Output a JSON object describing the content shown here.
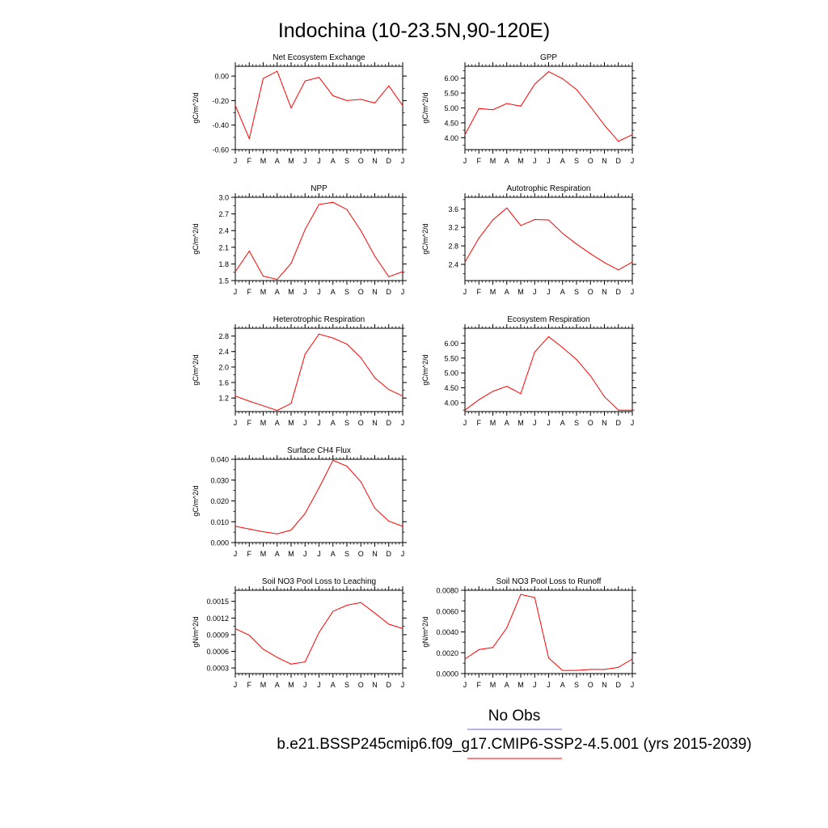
{
  "page": {
    "title": "Indochina (10-23.5N,90-120E)",
    "legend": {
      "obs_label": "No Obs",
      "obs_color": "#6666ff",
      "model_label": "b.e21.BSSP245cmip6.f09_g17.CMIP6-SSP2-4.5.001 (yrs 2015-2039)",
      "model_color": "#ff0000"
    }
  },
  "chart_data": [
    {
      "type": "line",
      "title": "Net Ecosystem Exchange",
      "ylabel": "gC/m^2/d",
      "x": [
        "J",
        "F",
        "M",
        "A",
        "M",
        "J",
        "J",
        "A",
        "S",
        "O",
        "N",
        "D",
        "J"
      ],
      "ylim": [
        -0.6,
        0.08
      ],
      "yticks": [
        -0.6,
        -0.4,
        -0.2,
        0.0
      ],
      "ytick_labels": [
        "-0.60",
        "-0.40",
        "-0.20",
        "0.00"
      ],
      "series": [
        {
          "values": [
            -0.24,
            -0.51,
            -0.02,
            0.04,
            -0.26,
            -0.04,
            -0.01,
            -0.16,
            -0.2,
            -0.19,
            -0.22,
            -0.08,
            -0.24
          ]
        }
      ]
    },
    {
      "type": "line",
      "title": "GPP",
      "ylabel": "gC/m^2/d",
      "x": [
        "J",
        "F",
        "M",
        "A",
        "M",
        "J",
        "J",
        "A",
        "S",
        "O",
        "N",
        "D",
        "J"
      ],
      "ylim": [
        3.6,
        6.4
      ],
      "yticks": [
        4.0,
        4.5,
        5.0,
        5.5,
        6.0
      ],
      "ytick_labels": [
        "4.00",
        "4.50",
        "5.00",
        "5.50",
        "6.00"
      ],
      "series": [
        {
          "values": [
            4.1,
            4.98,
            4.94,
            5.15,
            5.06,
            5.8,
            6.22,
            5.98,
            5.62,
            5.04,
            4.42,
            3.88,
            4.1
          ]
        }
      ]
    },
    {
      "type": "line",
      "title": "NPP",
      "ylabel": "gC/m^2/d",
      "x": [
        "J",
        "F",
        "M",
        "A",
        "M",
        "J",
        "J",
        "A",
        "S",
        "O",
        "N",
        "D",
        "J"
      ],
      "ylim": [
        1.5,
        3.0
      ],
      "yticks": [
        1.5,
        1.8,
        2.1,
        2.4,
        2.7,
        3.0
      ],
      "ytick_labels": [
        "1.5",
        "1.8",
        "2.1",
        "2.4",
        "2.7",
        "3.0"
      ],
      "series": [
        {
          "values": [
            1.66,
            2.03,
            1.58,
            1.52,
            1.81,
            2.42,
            2.87,
            2.91,
            2.78,
            2.4,
            1.94,
            1.57,
            1.66
          ]
        }
      ]
    },
    {
      "type": "line",
      "title": "Autotrophic Respiration",
      "ylabel": "gC/m^2/d",
      "x": [
        "J",
        "F",
        "M",
        "A",
        "M",
        "J",
        "J",
        "A",
        "S",
        "O",
        "N",
        "D",
        "J"
      ],
      "ylim": [
        2.05,
        3.85
      ],
      "yticks": [
        2.4,
        2.8,
        3.2,
        3.6
      ],
      "ytick_labels": [
        "2.4",
        "2.8",
        "3.2",
        "3.6"
      ],
      "series": [
        {
          "values": [
            2.45,
            2.97,
            3.36,
            3.62,
            3.24,
            3.37,
            3.36,
            3.07,
            2.84,
            2.63,
            2.44,
            2.28,
            2.45
          ]
        }
      ]
    },
    {
      "type": "line",
      "title": "Heterotrophic Respiration",
      "ylabel": "gC/m^2/d",
      "x": [
        "J",
        "F",
        "M",
        "A",
        "M",
        "J",
        "J",
        "A",
        "S",
        "O",
        "N",
        "D",
        "J"
      ],
      "ylim": [
        0.85,
        3.0
      ],
      "yticks": [
        1.2,
        1.6,
        2.0,
        2.4,
        2.8
      ],
      "ytick_labels": [
        "1.2",
        "1.6",
        "2.0",
        "2.4",
        "2.8"
      ],
      "series": [
        {
          "values": [
            1.25,
            1.12,
            1.0,
            0.88,
            1.06,
            2.33,
            2.85,
            2.75,
            2.59,
            2.24,
            1.72,
            1.42,
            1.25
          ]
        }
      ]
    },
    {
      "type": "line",
      "title": "Ecosystem Respiration",
      "ylabel": "gC/m^2/d",
      "x": [
        "J",
        "F",
        "M",
        "A",
        "M",
        "J",
        "J",
        "A",
        "S",
        "O",
        "N",
        "D",
        "J"
      ],
      "ylim": [
        3.7,
        6.5
      ],
      "yticks": [
        4.0,
        4.5,
        5.0,
        5.5,
        6.0
      ],
      "ytick_labels": [
        "4.00",
        "4.50",
        "5.00",
        "5.50",
        "6.00"
      ],
      "series": [
        {
          "values": [
            3.75,
            4.1,
            4.38,
            4.55,
            4.3,
            5.7,
            6.22,
            5.85,
            5.45,
            4.9,
            4.2,
            3.75,
            3.75
          ]
        }
      ]
    },
    {
      "type": "line",
      "title": "Surface CH4 Flux",
      "ylabel": "gC/m^2/d",
      "x": [
        "J",
        "F",
        "M",
        "A",
        "M",
        "J",
        "J",
        "A",
        "S",
        "O",
        "N",
        "D",
        "J"
      ],
      "ylim": [
        0.0,
        0.04
      ],
      "yticks": [
        0.0,
        0.01,
        0.02,
        0.03,
        0.04
      ],
      "ytick_labels": [
        "0.000",
        "0.010",
        "0.020",
        "0.030",
        "0.040"
      ],
      "series": [
        {
          "values": [
            0.0078,
            0.0065,
            0.0052,
            0.0042,
            0.006,
            0.014,
            0.0262,
            0.0395,
            0.0367,
            0.0292,
            0.0165,
            0.0103,
            0.0078
          ]
        }
      ]
    },
    {
      "type": "line",
      "title": "Soil NO3 Pool Loss to Leaching",
      "ylabel": "gN/m^2/d",
      "x": [
        "J",
        "F",
        "M",
        "A",
        "M",
        "J",
        "J",
        "A",
        "S",
        "O",
        "N",
        "D",
        "J"
      ],
      "ylim": [
        0.0002,
        0.0017
      ],
      "yticks": [
        0.0003,
        0.0006,
        0.0009,
        0.0012,
        0.0015
      ],
      "ytick_labels": [
        "0.0003",
        "0.0006",
        "0.0009",
        "0.0012",
        "0.0015"
      ],
      "series": [
        {
          "values": [
            0.00101,
            0.00089,
            0.00064,
            0.00049,
            0.00037,
            0.00041,
            0.00094,
            0.00132,
            0.00143,
            0.00148,
            0.00129,
            0.00109,
            0.00101
          ]
        }
      ]
    },
    {
      "type": "line",
      "title": "Soil NO3 Pool Loss to Runoff",
      "ylabel": "gN/m^2/d",
      "x": [
        "J",
        "F",
        "M",
        "A",
        "M",
        "J",
        "J",
        "A",
        "S",
        "O",
        "N",
        "D",
        "J"
      ],
      "ylim": [
        0.0,
        0.008
      ],
      "yticks": [
        0.0,
        0.002,
        0.004,
        0.006,
        0.008
      ],
      "ytick_labels": [
        "0.0000",
        "0.0020",
        "0.0040",
        "0.0060",
        "0.0080"
      ],
      "series": [
        {
          "values": [
            0.0014,
            0.0023,
            0.0025,
            0.0044,
            0.0076,
            0.0073,
            0.0015,
            0.0003,
            0.0003,
            0.0004,
            0.0004,
            0.0006,
            0.0014
          ]
        }
      ]
    }
  ]
}
